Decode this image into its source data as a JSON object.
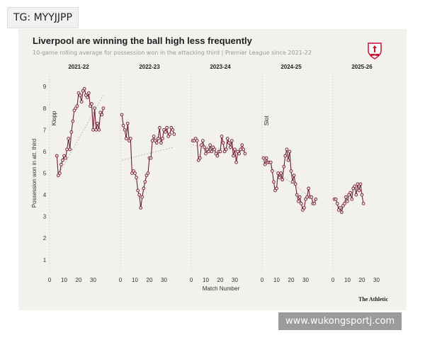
{
  "overlay": {
    "tg_label": "TG: MYYJJPP",
    "watermark": "www.wukongsportj.com"
  },
  "header": {
    "title": "Liverpool are winning the ball high less frequently",
    "subtitle": "10-game rolling average for possession won in the attacking third | Premier League since 2021-22"
  },
  "brand": "The Athletic",
  "logo_text": "LFC",
  "colors": {
    "line": "#6b1f30",
    "point_fill": "#f3dee3",
    "trend": "#b8b8b8",
    "text": "#1f1f1f",
    "muted": "#9a9a9a",
    "background": "#f3f1ed"
  },
  "chart_data": {
    "type": "line",
    "title": "Liverpool are winning the ball high less frequently",
    "xlabel": "Match Number",
    "ylabel": "Possession won in att. third",
    "ylim": [
      0.7,
      9.3
    ],
    "yticks": [
      1,
      2,
      3,
      4,
      5,
      6,
      7,
      8,
      9
    ],
    "xticks": [
      0,
      10,
      20,
      30
    ],
    "xlim": [
      0,
      38
    ],
    "annotations": [
      {
        "text": "Klopp",
        "panel": "2021-22"
      },
      {
        "text": "Slot",
        "panel": "2024-25"
      }
    ],
    "series": [
      {
        "name": "2021-22",
        "x": [
          5,
          6,
          7,
          8,
          9,
          10,
          11,
          12,
          13,
          14,
          15,
          16,
          17,
          18,
          19,
          20,
          21,
          22,
          23,
          24,
          25,
          26,
          27,
          28,
          29,
          30,
          31,
          32,
          33,
          34,
          35,
          36,
          37
        ],
        "values": [
          5.8,
          4.9,
          5.0,
          5.4,
          5.6,
          5.8,
          5.7,
          6.1,
          6.6,
          6.1,
          6.9,
          7.4,
          7.9,
          8.0,
          8.1,
          8.7,
          8.6,
          8.3,
          8.8,
          8.9,
          8.6,
          8.5,
          8.7,
          8.1,
          8.2,
          7.0,
          8.0,
          7.0,
          7.3,
          7.0,
          7.8,
          7.7,
          8.0
        ],
        "trend": [
          4.8,
          8.6
        ]
      },
      {
        "name": "2022-23",
        "x": [
          1,
          2,
          3,
          4,
          5,
          6,
          7,
          8,
          9,
          10,
          11,
          12,
          13,
          14,
          15,
          16,
          17,
          18,
          19,
          20,
          21,
          22,
          23,
          24,
          25,
          26,
          27,
          28,
          29,
          30,
          31,
          32,
          33,
          34,
          35,
          36,
          37
        ],
        "values": [
          7.7,
          7.2,
          7.0,
          6.6,
          7.3,
          6.5,
          6.6,
          5.0,
          5.1,
          5.0,
          4.8,
          4.2,
          4.0,
          3.4,
          3.9,
          4.3,
          4.6,
          4.9,
          5.0,
          5.7,
          5.7,
          6.5,
          6.7,
          6.5,
          6.4,
          6.6,
          7.1,
          6.4,
          6.6,
          7.0,
          6.9,
          7.1,
          6.7,
          6.8,
          7.1,
          7.0,
          6.8
        ],
        "trend": [
          5.6,
          6.2
        ]
      },
      {
        "name": "2023-24",
        "x": [
          1,
          2,
          3,
          4,
          5,
          6,
          7,
          8,
          9,
          10,
          11,
          12,
          13,
          14,
          15,
          16,
          17,
          18,
          19,
          20,
          21,
          22,
          23,
          24,
          25,
          26,
          27,
          28,
          29,
          30,
          31,
          32,
          33,
          34,
          35,
          36,
          37
        ],
        "values": [
          6.5,
          6.5,
          6.6,
          6.5,
          5.6,
          5.7,
          6.3,
          6.5,
          6.2,
          5.9,
          6.1,
          6.0,
          6.3,
          6.0,
          6.2,
          6.1,
          5.9,
          5.8,
          6.0,
          6.0,
          6.7,
          6.4,
          6.0,
          6.1,
          6.6,
          6.4,
          6.2,
          6.5,
          5.8,
          6.1,
          5.5,
          6.0,
          5.9,
          6.1,
          6.3,
          6.1,
          5.9
        ],
        "trend": [
          6.3,
          6.0
        ]
      },
      {
        "name": "2024-25",
        "x": [
          1,
          2,
          3,
          4,
          5,
          6,
          7,
          8,
          9,
          10,
          11,
          12,
          13,
          14,
          15,
          16,
          17,
          18,
          19,
          20,
          21,
          22,
          23,
          24,
          25,
          26,
          27,
          28,
          29,
          30,
          31,
          32,
          33,
          34,
          35,
          36,
          37
        ],
        "values": [
          5.7,
          5.4,
          5.7,
          5.5,
          5.5,
          5.5,
          5.1,
          4.6,
          4.2,
          4.3,
          5.0,
          4.8,
          5.0,
          4.7,
          5.3,
          5.8,
          6.1,
          5.6,
          6.0,
          5.1,
          4.6,
          4.9,
          4.5,
          4.0,
          3.7,
          3.9,
          3.6,
          3.3,
          3.4,
          3.8,
          3.9,
          4.3,
          3.9,
          3.9,
          3.6,
          3.6,
          3.8
        ],
        "trend": [
          5.5,
          3.7
        ]
      },
      {
        "name": "2025-26",
        "x": [
          1,
          2,
          3,
          4,
          5,
          6,
          7,
          8,
          9,
          10,
          11,
          12,
          13,
          14,
          15,
          16,
          17,
          18,
          19,
          20,
          21
        ],
        "values": [
          3.8,
          3.8,
          3.6,
          3.3,
          3.4,
          3.2,
          3.5,
          3.6,
          3.9,
          3.7,
          4.0,
          4.1,
          3.8,
          4.3,
          4.4,
          4.0,
          4.5,
          4.2,
          4.5,
          4.0,
          3.6
        ]
      }
    ]
  }
}
